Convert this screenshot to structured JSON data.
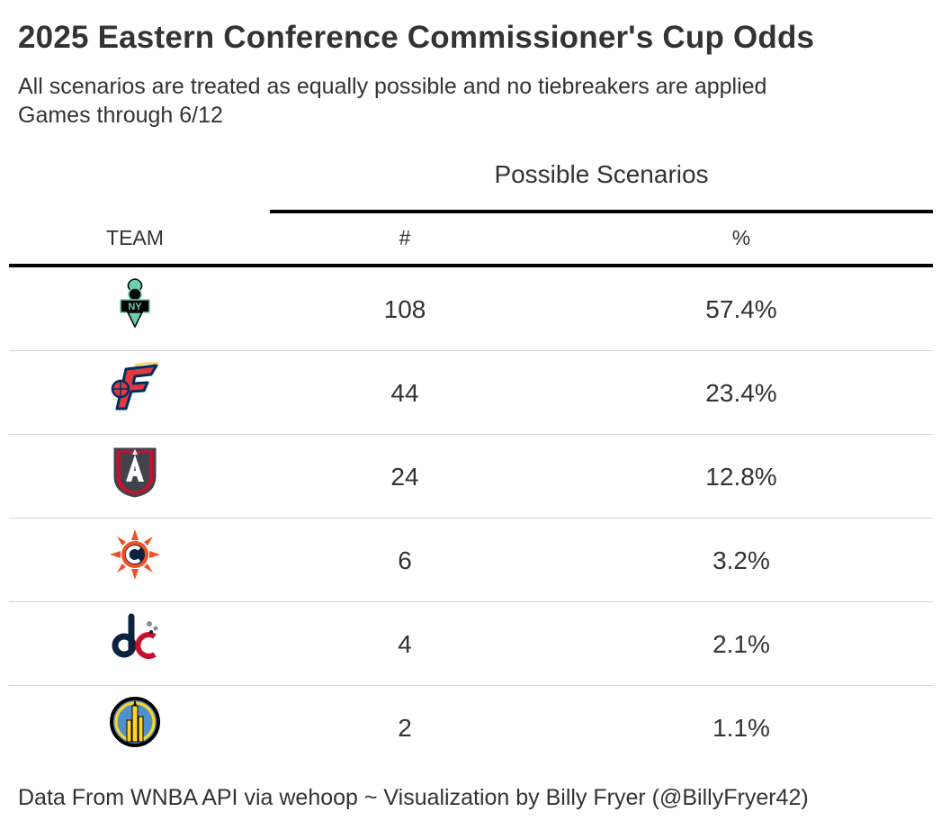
{
  "title": "2025 Eastern Conference Commissioner's Cup Odds",
  "subtitle_line1": "All scenarios are treated as equally possible and no tiebreakers are applied",
  "subtitle_line2": "Games through 6/12",
  "spanner_label": "Possible Scenarios",
  "columns": {
    "team": "TEAM",
    "count": "#",
    "percent": "%"
  },
  "caption": "Data From WNBA API via wehoop ~ Visualization by Billy Fryer (@BillyFryer42)",
  "chart_data": {
    "type": "table",
    "title": "2025 Eastern Conference Commissioner's Cup Odds",
    "columns": [
      "TEAM",
      "#",
      "%"
    ],
    "rows": [
      {
        "team_logo": "new-york-liberty-logo",
        "scenarios": 108,
        "percent_label": "57.4%",
        "percent": 57.4
      },
      {
        "team_logo": "indiana-fever-logo",
        "scenarios": 44,
        "percent_label": "23.4%",
        "percent": 23.4
      },
      {
        "team_logo": "atlanta-dream-logo",
        "scenarios": 24,
        "percent_label": "12.8%",
        "percent": 12.8
      },
      {
        "team_logo": "connecticut-sun-logo",
        "scenarios": 6,
        "percent_label": "3.2%",
        "percent": 3.2
      },
      {
        "team_logo": "washington-mystics-logo",
        "scenarios": 4,
        "percent_label": "2.1%",
        "percent": 2.1
      },
      {
        "team_logo": "chicago-sky-logo",
        "scenarios": 2,
        "percent_label": "1.1%",
        "percent": 1.1
      }
    ]
  },
  "colors": {
    "text": "#333333",
    "rule": "#000000",
    "row_divider": "#d3d3d3"
  }
}
